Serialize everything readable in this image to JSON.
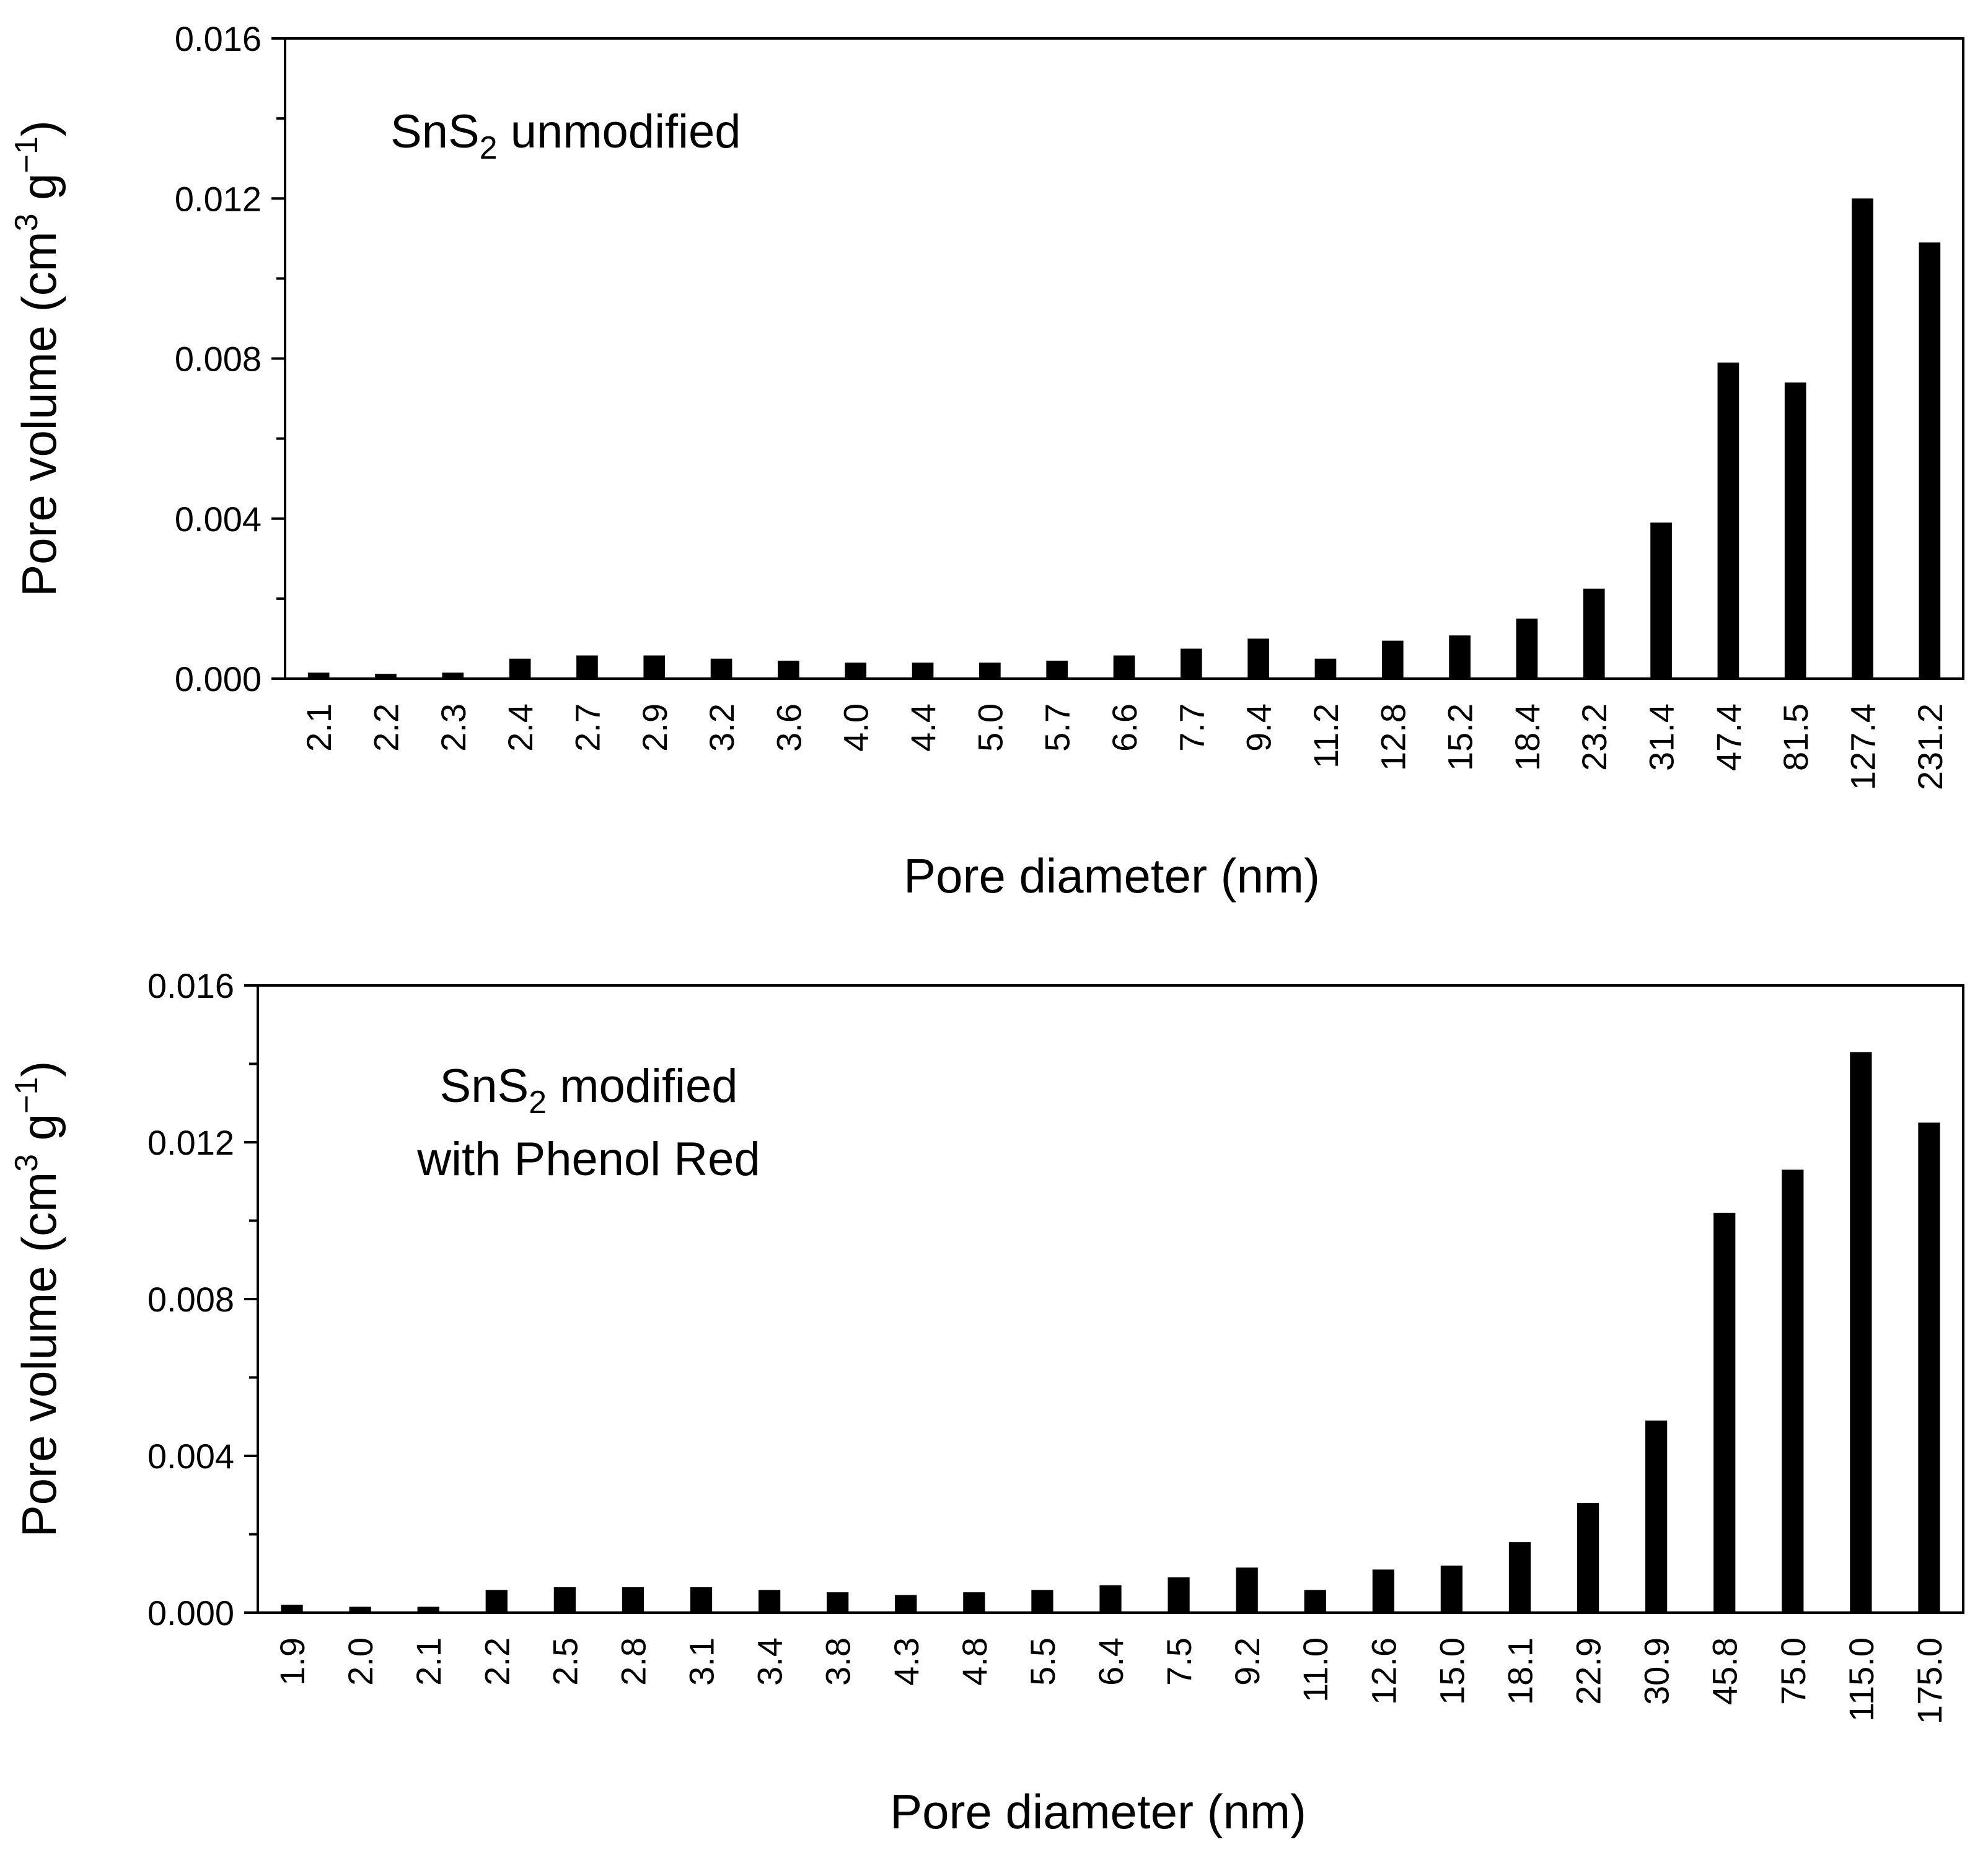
{
  "chart_data": [
    {
      "type": "bar",
      "id": "top",
      "annotation_lines": [
        {
          "main": "SnS",
          "sub": "2",
          "rest": " unmodified"
        }
      ],
      "xlabel": "Pore diameter (nm)",
      "ylabel": {
        "prefix": "Pore volume (cm",
        "sup1": "3",
        "mid": " g",
        "sup2": "−1",
        "suffix": ")"
      },
      "ylim": [
        0,
        0.016
      ],
      "yticks": [
        "0.000",
        "0.004",
        "0.008",
        "0.012",
        "0.016"
      ],
      "ytick_values": [
        0,
        0.004,
        0.008,
        0.012,
        0.016
      ],
      "categories": [
        "2.1",
        "2.2",
        "2.3",
        "2.4",
        "2.7",
        "2.9",
        "3.2",
        "3.6",
        "4.0",
        "4.4",
        "5.0",
        "5.7",
        "6.6",
        "7.7",
        "9.4",
        "11.2",
        "12.8",
        "15.2",
        "18.4",
        "23.2",
        "31.4",
        "47.4",
        "81.5",
        "127.4",
        "231.2"
      ],
      "values": [
        0.00015,
        0.00012,
        0.00015,
        0.0005,
        0.00058,
        0.00058,
        0.0005,
        0.00045,
        0.0004,
        0.0004,
        0.0004,
        0.00045,
        0.00058,
        0.00075,
        0.001,
        0.0005,
        0.00095,
        0.00108,
        0.0015,
        0.00225,
        0.0039,
        0.0079,
        0.0074,
        0.012,
        0.0109
      ],
      "bar_color": "#000000"
    },
    {
      "type": "bar",
      "id": "bottom",
      "annotation_lines": [
        {
          "main": "SnS",
          "sub": "2",
          "rest": " modified"
        },
        {
          "main": "with Phenol Red",
          "sub": "",
          "rest": ""
        }
      ],
      "xlabel": "Pore diameter (nm)",
      "ylabel": {
        "prefix": "Pore volume (cm",
        "sup1": "3",
        "mid": " g",
        "sup2": "−1",
        "suffix": ")"
      },
      "ylim": [
        0,
        0.016
      ],
      "yticks": [
        "0.000",
        "0.004",
        "0.008",
        "0.012",
        "0.016"
      ],
      "ytick_values": [
        0,
        0.004,
        0.008,
        0.012,
        0.016
      ],
      "categories": [
        "1.9",
        "2.0",
        "2.1",
        "2.2",
        "2.5",
        "2.8",
        "3.1",
        "3.4",
        "3.8",
        "4.3",
        "4.8",
        "5.5",
        "6.4",
        "7.5",
        "9.2",
        "11.0",
        "12.6",
        "15.0",
        "18.1",
        "22.9",
        "30.9",
        "45.8",
        "75.0",
        "115.0",
        "175.0"
      ],
      "values": [
        0.0002,
        0.00015,
        0.00015,
        0.00058,
        0.00065,
        0.00065,
        0.00065,
        0.00058,
        0.00052,
        0.00045,
        0.00052,
        0.00058,
        0.0007,
        0.0009,
        0.00115,
        0.00058,
        0.0011,
        0.0012,
        0.0018,
        0.0028,
        0.0049,
        0.0102,
        0.0113,
        0.0143,
        0.0125
      ],
      "bar_color": "#000000"
    }
  ]
}
